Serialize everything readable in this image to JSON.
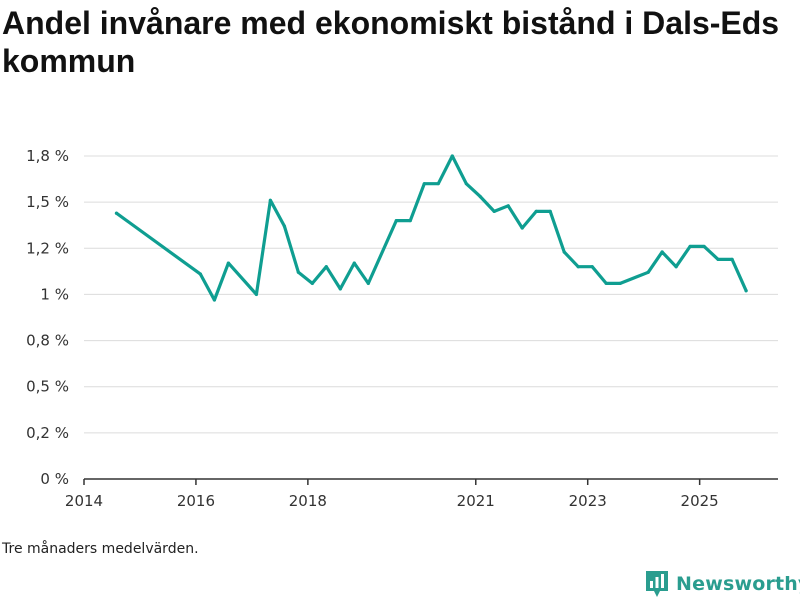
{
  "title": "Andel invånare med ekonomiskt bistånd i Dals-Eds kommun",
  "footnote": "Tre månaders medelvärden.",
  "brand": {
    "name": "Newsworthy",
    "icon": "newsworthy-logo-icon"
  },
  "colors": {
    "line": "#0f9e91",
    "grid": "#dcdcdc",
    "axis": "#333333",
    "brand": "#2a9d8f"
  },
  "chart_data": {
    "type": "line",
    "title": "Andel invånare med ekonomiskt bistånd i Dals-Eds kommun",
    "xlabel": "",
    "ylabel": "",
    "xlim": [
      2014,
      2026.4
    ],
    "ylim": [
      0,
      1.75
    ],
    "y_ticks": [
      {
        "value": 0,
        "label": "0 %"
      },
      {
        "value": 0.25,
        "label": "0,2 %"
      },
      {
        "value": 0.5,
        "label": "0,5 %"
      },
      {
        "value": 0.75,
        "label": "0,8 %"
      },
      {
        "value": 1.0,
        "label": "1 %"
      },
      {
        "value": 1.25,
        "label": "1,2 %"
      },
      {
        "value": 1.5,
        "label": "1,5 %"
      },
      {
        "value": 1.75,
        "label": "1,8 %"
      }
    ],
    "x_ticks": [
      {
        "value": 2014,
        "label": "2014"
      },
      {
        "value": 2016,
        "label": "2016"
      },
      {
        "value": 2018,
        "label": "2018"
      },
      {
        "value": 2021,
        "label": "2021"
      },
      {
        "value": 2023,
        "label": "2023"
      },
      {
        "value": 2025,
        "label": "2025"
      }
    ],
    "series": [
      {
        "name": "Andel invånare med ekonomiskt bistånd",
        "x": [
          2014.58,
          2016.08,
          2016.33,
          2016.58,
          2017.08,
          2017.33,
          2017.58,
          2017.83,
          2018.08,
          2018.33,
          2018.58,
          2018.83,
          2019.08,
          2019.58,
          2019.83,
          2020.08,
          2020.33,
          2020.58,
          2020.83,
          2021.08,
          2021.33,
          2021.58,
          2021.83,
          2022.08,
          2022.33,
          2022.58,
          2022.83,
          2023.08,
          2023.33,
          2023.58,
          2024.08,
          2024.33,
          2024.58,
          2024.83,
          2025.08,
          2025.33,
          2025.58,
          2025.83
        ],
        "values": [
          1.44,
          1.11,
          0.97,
          1.17,
          1.0,
          1.51,
          1.37,
          1.12,
          1.06,
          1.15,
          1.03,
          1.17,
          1.06,
          1.4,
          1.4,
          1.6,
          1.6,
          1.75,
          1.6,
          1.53,
          1.45,
          1.48,
          1.36,
          1.45,
          1.45,
          1.23,
          1.15,
          1.15,
          1.06,
          1.06,
          1.12,
          1.23,
          1.15,
          1.26,
          1.26,
          1.19,
          1.19,
          1.02
        ]
      }
    ]
  }
}
